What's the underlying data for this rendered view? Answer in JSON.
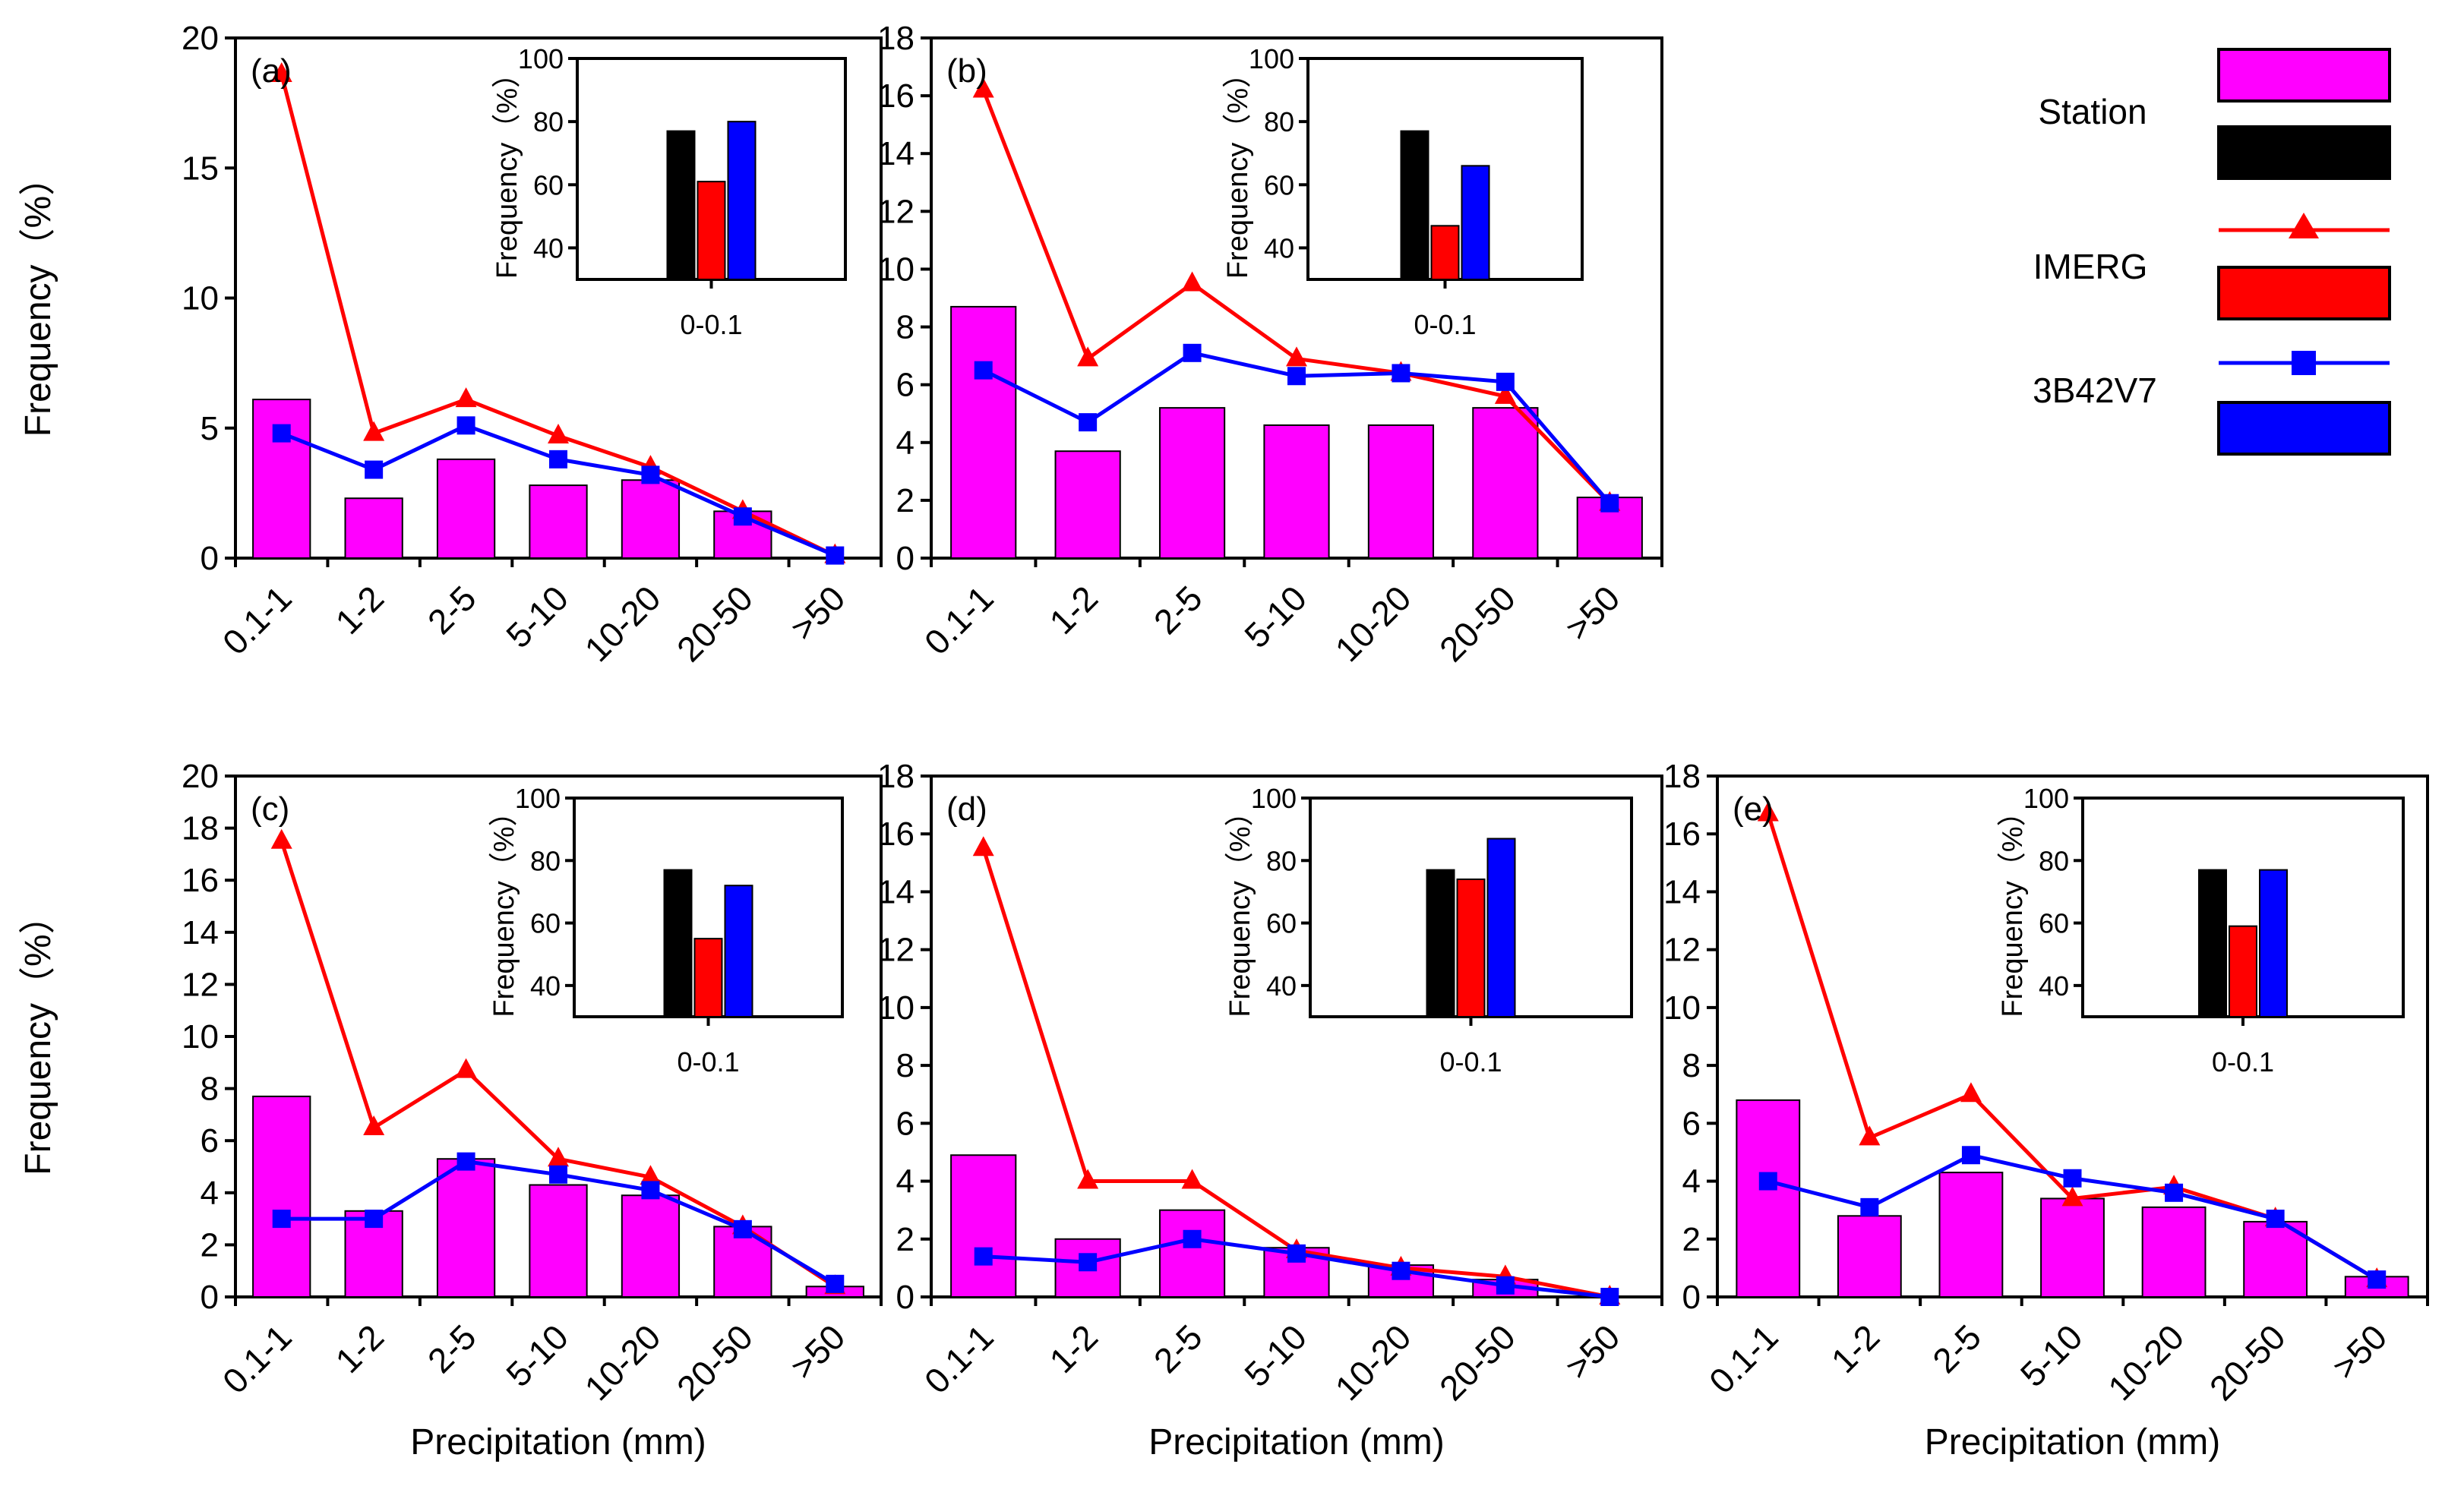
{
  "figure": {
    "legend": {
      "entries": [
        {
          "group": "Station",
          "label": "Station"
        },
        {
          "group": "IMERG",
          "label": "IMERG"
        },
        {
          "group": "3B42V7",
          "label": "3B42V7"
        }
      ]
    },
    "colors": {
      "station_bar": "#ff00ff",
      "imerg": "#ff0000",
      "trmm": "#0000ff",
      "station_inset": "#000000"
    }
  },
  "chart_data": [
    {
      "type": "bar",
      "panel": "(a)",
      "categories": [
        "0.1-1",
        "1-2",
        "2-5",
        "5-10",
        "10-20",
        "20-50",
        ">50"
      ],
      "ylabel": "Frequency（%）",
      "xlabel": "",
      "ylim": [
        0,
        20
      ],
      "yticks": [
        0,
        5,
        10,
        15,
        20
      ],
      "series": [
        {
          "name": "Station",
          "kind": "bar",
          "values": [
            6.1,
            2.3,
            3.8,
            2.8,
            3.0,
            1.8,
            0.0
          ]
        },
        {
          "name": "IMERG",
          "kind": "line-triangle",
          "values": [
            18.6,
            4.8,
            6.1,
            4.7,
            3.5,
            1.8,
            0.1
          ]
        },
        {
          "name": "3B42V7",
          "kind": "line-square",
          "values": [
            4.8,
            3.4,
            5.1,
            3.8,
            3.2,
            1.6,
            0.1
          ]
        }
      ],
      "inset": {
        "category": "0-0.1",
        "ylabel": "Frequency（%）",
        "ylim": [
          30,
          100
        ],
        "yticks": [
          40,
          60,
          80,
          100
        ],
        "values": {
          "Station": 77,
          "IMERG": 61,
          "3B42V7": 80
        }
      }
    },
    {
      "type": "bar",
      "panel": "(b)",
      "categories": [
        "0.1-1",
        "1-2",
        "2-5",
        "5-10",
        "10-20",
        "20-50",
        ">50"
      ],
      "ylabel": "",
      "xlabel": "",
      "ylim": [
        0,
        18
      ],
      "yticks": [
        0,
        2,
        4,
        6,
        8,
        10,
        12,
        14,
        16,
        18
      ],
      "series": [
        {
          "name": "Station",
          "kind": "bar",
          "values": [
            8.7,
            3.7,
            5.2,
            4.6,
            4.6,
            5.2,
            2.1
          ]
        },
        {
          "name": "IMERG",
          "kind": "line-triangle",
          "values": [
            16.2,
            6.9,
            9.5,
            6.9,
            6.4,
            5.6,
            1.9
          ]
        },
        {
          "name": "3B42V7",
          "kind": "line-square",
          "values": [
            6.5,
            4.7,
            7.1,
            6.3,
            6.4,
            6.1,
            1.9
          ]
        }
      ],
      "inset": {
        "category": "0-0.1",
        "ylabel": "Frequency（%）",
        "ylim": [
          30,
          100
        ],
        "yticks": [
          40,
          60,
          80,
          100
        ],
        "values": {
          "Station": 77,
          "IMERG": 47,
          "3B42V7": 66
        }
      }
    },
    {
      "type": "bar",
      "panel": "(c)",
      "categories": [
        "0.1-1",
        "1-2",
        "2-5",
        "5-10",
        "10-20",
        "20-50",
        ">50"
      ],
      "ylabel": "Frequency（%）",
      "xlabel": "Precipitation (mm)",
      "ylim": [
        0,
        20
      ],
      "yticks": [
        0,
        2,
        4,
        6,
        8,
        10,
        12,
        14,
        16,
        18,
        20
      ],
      "series": [
        {
          "name": "Station",
          "kind": "bar",
          "values": [
            7.7,
            3.3,
            5.3,
            4.3,
            3.9,
            2.7,
            0.4
          ]
        },
        {
          "name": "IMERG",
          "kind": "line-triangle",
          "values": [
            17.5,
            6.5,
            8.7,
            5.3,
            4.6,
            2.7,
            0.4
          ]
        },
        {
          "name": "3B42V7",
          "kind": "line-square",
          "values": [
            3.0,
            3.0,
            5.2,
            4.7,
            4.1,
            2.6,
            0.5
          ]
        }
      ],
      "inset": {
        "category": "0-0.1",
        "ylabel": "Frequency（%）",
        "ylim": [
          30,
          100
        ],
        "yticks": [
          40,
          60,
          80,
          100
        ],
        "values": {
          "Station": 77,
          "IMERG": 55,
          "3B42V7": 72
        }
      }
    },
    {
      "type": "bar",
      "panel": "(d)",
      "categories": [
        "0.1-1",
        "1-2",
        "2-5",
        "5-10",
        "10-20",
        "20-50",
        ">50"
      ],
      "ylabel": "",
      "xlabel": "Precipitation (mm)",
      "ylim": [
        0,
        18
      ],
      "yticks": [
        0,
        2,
        4,
        6,
        8,
        10,
        12,
        14,
        16,
        18
      ],
      "series": [
        {
          "name": "Station",
          "kind": "bar",
          "values": [
            4.9,
            2.0,
            3.0,
            1.7,
            1.1,
            0.6,
            0.0
          ]
        },
        {
          "name": "IMERG",
          "kind": "line-triangle",
          "values": [
            15.5,
            4.0,
            4.0,
            1.6,
            1.0,
            0.7,
            0.0
          ]
        },
        {
          "name": "3B42V7",
          "kind": "line-square",
          "values": [
            1.4,
            1.2,
            2.0,
            1.5,
            0.9,
            0.4,
            0.0
          ]
        }
      ],
      "inset": {
        "category": "0-0.1",
        "ylabel": "Frequency（%）",
        "ylim": [
          30,
          100
        ],
        "yticks": [
          40,
          60,
          80,
          100
        ],
        "values": {
          "Station": 77,
          "IMERG": 74,
          "3B42V7": 87
        }
      }
    },
    {
      "type": "bar",
      "panel": "(e)",
      "categories": [
        "0.1-1",
        "1-2",
        "2-5",
        "5-10",
        "10-20",
        "20-50",
        ">50"
      ],
      "ylabel": "",
      "xlabel": "Precipitation (mm)",
      "ylim": [
        0,
        18
      ],
      "yticks": [
        0,
        2,
        4,
        6,
        8,
        10,
        12,
        14,
        16,
        18
      ],
      "series": [
        {
          "name": "Station",
          "kind": "bar",
          "values": [
            6.8,
            2.8,
            4.3,
            3.4,
            3.1,
            2.6,
            0.7
          ]
        },
        {
          "name": "IMERG",
          "kind": "line-triangle",
          "values": [
            16.7,
            5.5,
            7.0,
            3.4,
            3.8,
            2.7,
            0.6
          ]
        },
        {
          "name": "3B42V7",
          "kind": "line-square",
          "values": [
            4.0,
            3.1,
            4.9,
            4.1,
            3.6,
            2.7,
            0.6
          ]
        }
      ],
      "inset": {
        "category": "0-0.1",
        "ylabel": "Frequency（%）",
        "ylim": [
          30,
          100
        ],
        "yticks": [
          40,
          60,
          80,
          100
        ],
        "values": {
          "Station": 77,
          "IMERG": 59,
          "3B42V7": 77
        }
      }
    }
  ]
}
